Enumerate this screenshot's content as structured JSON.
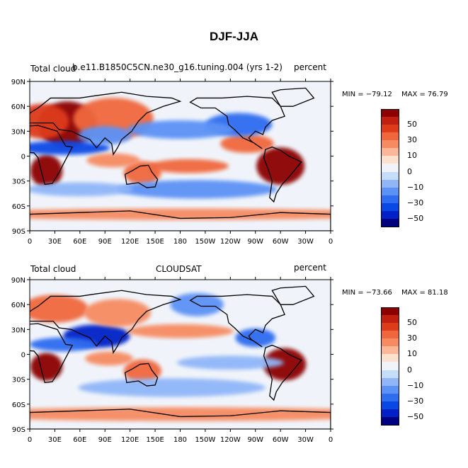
{
  "main_title": "DJF-JJA",
  "chart_data": [
    {
      "type": "heatmap",
      "subtype": "global-contour-map",
      "variable": "Total cloud",
      "source": "b.e11.B1850C5CN.ne30_g16.tuning.004 (yrs 1-2)",
      "units": "percent",
      "min_label": "MIN = −79.12",
      "max_label": "MAX =  76.79",
      "min": -79.12,
      "max": 76.79,
      "lat_ticks": [
        "90N",
        "60N",
        "30N",
        "0",
        "30S",
        "60S",
        "90S"
      ],
      "lon_ticks": [
        "0",
        "30E",
        "60E",
        "90E",
        "120E",
        "150E",
        "180",
        "150W",
        "120W",
        "90W",
        "60W",
        "30W",
        "0"
      ],
      "levels": [
        -60,
        -50,
        -40,
        -30,
        -20,
        -10,
        -5,
        0,
        5,
        10,
        20,
        30,
        40,
        50,
        60
      ],
      "colorbar_labels": [
        "50",
        "30",
        "10",
        "0",
        "−10",
        "−30",
        "−50"
      ],
      "regions": [
        {
          "lon": 45,
          "lat": 38,
          "rx": 22,
          "ry": 20,
          "value": 55
        },
        {
          "lon": 15,
          "lat": 42,
          "rx": 20,
          "ry": 15,
          "value": 40
        },
        {
          "lon": 100,
          "lat": 45,
          "rx": 30,
          "ry": 18,
          "value": 25
        },
        {
          "lon": 20,
          "lat": -18,
          "rx": 12,
          "ry": 14,
          "value": 55
        },
        {
          "lon": 300,
          "lat": -12,
          "rx": 18,
          "ry": 16,
          "value": 60
        },
        {
          "lon": 135,
          "lat": -20,
          "rx": 14,
          "ry": 10,
          "value": 25
        },
        {
          "lon": 190,
          "lat": -12,
          "rx": 30,
          "ry": 6,
          "value": 25
        },
        {
          "lon": 260,
          "lat": 15,
          "rx": 20,
          "ry": 8,
          "value": 25
        },
        {
          "lon": 40,
          "lat": 10,
          "rx": 35,
          "ry": 6,
          "value": -45
        },
        {
          "lon": 250,
          "lat": 38,
          "rx": 25,
          "ry": 10,
          "value": -35
        },
        {
          "lon": 180,
          "lat": 32,
          "rx": 40,
          "ry": 8,
          "value": -25
        },
        {
          "lon": 90,
          "lat": 25,
          "rx": 20,
          "ry": 8,
          "value": -25
        },
        {
          "lon": 200,
          "lat": -40,
          "rx": 60,
          "ry": 8,
          "value": -20
        },
        {
          "lon": 100,
          "lat": -5,
          "rx": 20,
          "ry": 6,
          "value": 20
        },
        {
          "lon": 60,
          "lat": -40,
          "rx": 40,
          "ry": 6,
          "value": -10
        },
        {
          "lon": 180,
          "lat": -70,
          "rx": 170,
          "ry": 5,
          "value": 15
        }
      ]
    },
    {
      "type": "heatmap",
      "subtype": "global-contour-map",
      "variable": "Total cloud",
      "source": "CLOUDSAT",
      "units": "percent",
      "min_label": "MIN = −73.66",
      "max_label": "MAX =  81.18",
      "min": -73.66,
      "max": 81.18,
      "lat_ticks": [
        "90N",
        "60N",
        "30N",
        "0",
        "30S",
        "60S",
        "90S"
      ],
      "lon_ticks": [
        "0",
        "30E",
        "60E",
        "90E",
        "120E",
        "150E",
        "180",
        "150W",
        "120W",
        "90W",
        "60W",
        "30W",
        "0"
      ],
      "levels": [
        -60,
        -50,
        -40,
        -30,
        -20,
        -10,
        -5,
        0,
        5,
        10,
        20,
        30,
        40,
        50,
        60
      ],
      "colorbar_labels": [
        "50",
        "30",
        "10",
        "0",
        "−10",
        "−30",
        "−50"
      ],
      "regions": [
        {
          "lon": 20,
          "lat": -15,
          "rx": 12,
          "ry": 12,
          "value": 60
        },
        {
          "lon": 305,
          "lat": -12,
          "rx": 16,
          "ry": 14,
          "value": 55
        },
        {
          "lon": 80,
          "lat": 22,
          "rx": 25,
          "ry": 10,
          "value": -55
        },
        {
          "lon": 40,
          "lat": 12,
          "rx": 25,
          "ry": 6,
          "value": -35
        },
        {
          "lon": 270,
          "lat": 20,
          "rx": 15,
          "ry": 8,
          "value": -30
        },
        {
          "lon": 180,
          "lat": 28,
          "rx": 40,
          "ry": 6,
          "value": 15
        },
        {
          "lon": 135,
          "lat": -20,
          "rx": 14,
          "ry": 10,
          "value": 30
        },
        {
          "lon": 30,
          "lat": 55,
          "rx": 25,
          "ry": 12,
          "value": 30
        },
        {
          "lon": 105,
          "lat": 50,
          "rx": 25,
          "ry": 12,
          "value": 20
        },
        {
          "lon": 240,
          "lat": -10,
          "rx": 40,
          "ry": 6,
          "value": -15
        },
        {
          "lon": 170,
          "lat": -40,
          "rx": 70,
          "ry": 8,
          "value": -15
        },
        {
          "lon": 180,
          "lat": -72,
          "rx": 170,
          "ry": 6,
          "value": 20
        },
        {
          "lon": 200,
          "lat": 60,
          "rx": 20,
          "ry": 10,
          "value": -20
        },
        {
          "lon": 95,
          "lat": -5,
          "rx": 18,
          "ry": 6,
          "value": 15
        }
      ]
    }
  ],
  "colorbar": {
    "colors": [
      "#00007f",
      "#0020c8",
      "#0a48e6",
      "#2e6cf0",
      "#5c92f5",
      "#90b6f8",
      "#c6dcfb",
      "#f0f4fa",
      "#fde0cf",
      "#fbb797",
      "#f68b62",
      "#f0673d",
      "#dd3b1a",
      "#c02010",
      "#8c0000"
    ]
  },
  "land_outline_color": "#000000",
  "coastline_caption": ""
}
